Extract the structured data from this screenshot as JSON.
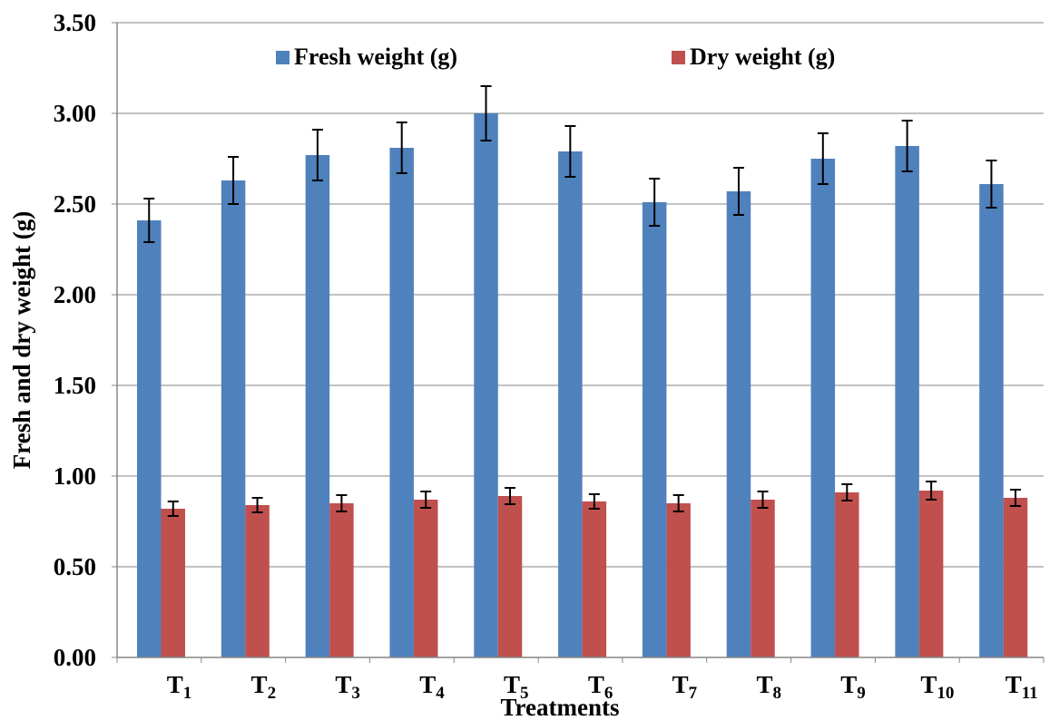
{
  "chart_data": {
    "type": "bar",
    "title": "",
    "xlabel": "Treatments",
    "ylabel": "Fresh and dry weight (g)",
    "ylim": [
      0,
      3.5
    ],
    "yticks": [
      "0.00",
      "0.50",
      "1.00",
      "1.50",
      "2.00",
      "2.50",
      "3.00",
      "3.50"
    ],
    "grid": true,
    "legend_position": "top",
    "categories": [
      {
        "main": "T",
        "sub": "1"
      },
      {
        "main": "T",
        "sub": "2"
      },
      {
        "main": "T",
        "sub": "3"
      },
      {
        "main": "T",
        "sub": "4"
      },
      {
        "main": "T",
        "sub": "5"
      },
      {
        "main": "T",
        "sub": "6"
      },
      {
        "main": "T",
        "sub": "7"
      },
      {
        "main": "T",
        "sub": "8"
      },
      {
        "main": "T",
        "sub": "9"
      },
      {
        "main": "T",
        "sub": "10"
      },
      {
        "main": "T",
        "sub": "11"
      }
    ],
    "series": [
      {
        "name": "Fresh weight (g)",
        "color": "#4f81bd",
        "values": [
          2.41,
          2.63,
          2.77,
          2.81,
          3.0,
          2.79,
          2.51,
          2.57,
          2.75,
          2.82,
          2.61
        ],
        "errors": [
          0.12,
          0.13,
          0.14,
          0.14,
          0.15,
          0.14,
          0.13,
          0.13,
          0.14,
          0.14,
          0.13
        ]
      },
      {
        "name": "Dry weight (g)",
        "color": "#c0504d",
        "values": [
          0.82,
          0.84,
          0.85,
          0.87,
          0.89,
          0.86,
          0.85,
          0.87,
          0.91,
          0.92,
          0.88
        ],
        "errors": [
          0.04,
          0.04,
          0.045,
          0.045,
          0.045,
          0.04,
          0.045,
          0.045,
          0.045,
          0.05,
          0.045
        ]
      }
    ]
  }
}
